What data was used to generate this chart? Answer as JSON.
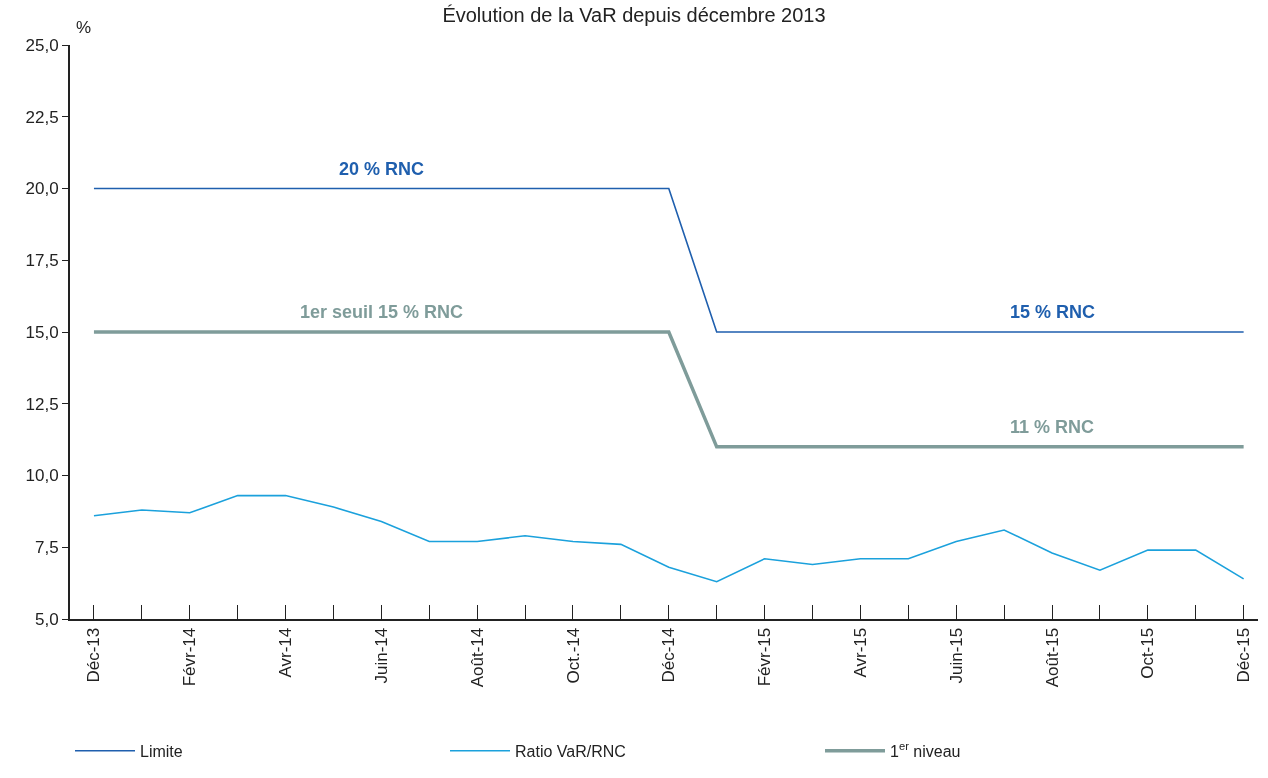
{
  "chart_data": {
    "type": "line",
    "title": "Évolution de la VaR depuis décembre 2013",
    "ylabel": "%",
    "categories": [
      "Déc-13",
      null,
      "Févr-14",
      null,
      "Avr-14",
      null,
      "Juin-14",
      null,
      "Août-14",
      null,
      "Oct.-14",
      null,
      "Déc-14",
      null,
      "Févr-15",
      null,
      "Avr-15",
      null,
      "Juin-15",
      null,
      "Août-15",
      null,
      "Oct-15",
      null,
      "Déc-15"
    ],
    "series": [
      {
        "name": "Limite",
        "color": "#1f5fae",
        "values": [
          20,
          20,
          20,
          20,
          20,
          20,
          20,
          20,
          20,
          20,
          20,
          20,
          20,
          15,
          15,
          15,
          15,
          15,
          15,
          15,
          15,
          15,
          15,
          15,
          15
        ]
      },
      {
        "name": "Ratio VaR/RNC",
        "color": "#1ba1dc",
        "values": [
          8.6,
          8.8,
          8.7,
          9.3,
          9.3,
          8.9,
          8.4,
          7.7,
          7.7,
          7.9,
          7.7,
          7.6,
          6.8,
          6.3,
          7.1,
          6.9,
          7.1,
          7.1,
          7.7,
          8.1,
          7.3,
          6.7,
          7.4,
          7.4,
          6.4
        ]
      },
      {
        "name": "1$^{er}$ niveau",
        "color": "#7f9c9a",
        "values": [
          15,
          15,
          15,
          15,
          15,
          15,
          15,
          15,
          15,
          15,
          15,
          15,
          15,
          11,
          11,
          11,
          11,
          11,
          11,
          11,
          11,
          11,
          11,
          11,
          11
        ]
      }
    ],
    "ylim": [
      5,
      25
    ],
    "yticks": [
      {
        "value": 5,
        "label": "5,0"
      },
      {
        "value": 7.5,
        "label": "7,5"
      },
      {
        "value": 10,
        "label": "10,0"
      },
      {
        "value": 12.5,
        "label": "12,5"
      },
      {
        "value": 15,
        "label": "15,0"
      },
      {
        "value": 17.5,
        "label": "17,5"
      },
      {
        "value": 20,
        "label": "20,0"
      },
      {
        "value": 22.5,
        "label": "22,5"
      },
      {
        "value": 25,
        "label": "25,0"
      }
    ],
    "annotations": [
      {
        "text": "20 % RNC",
        "x": "Juin-14",
        "y": 20
      },
      {
        "text": "1er seuil 15 % RNC",
        "x": "Juin-14",
        "y": 15
      },
      {
        "text": "15 % RNC",
        "x": "Août-15",
        "y": 15
      },
      {
        "text": "11 % RNC",
        "x": "Août-15",
        "y": 11
      }
    ],
    "grid": false,
    "legend": "bottom",
    "marker": "none",
    "line_style": "solid"
  }
}
